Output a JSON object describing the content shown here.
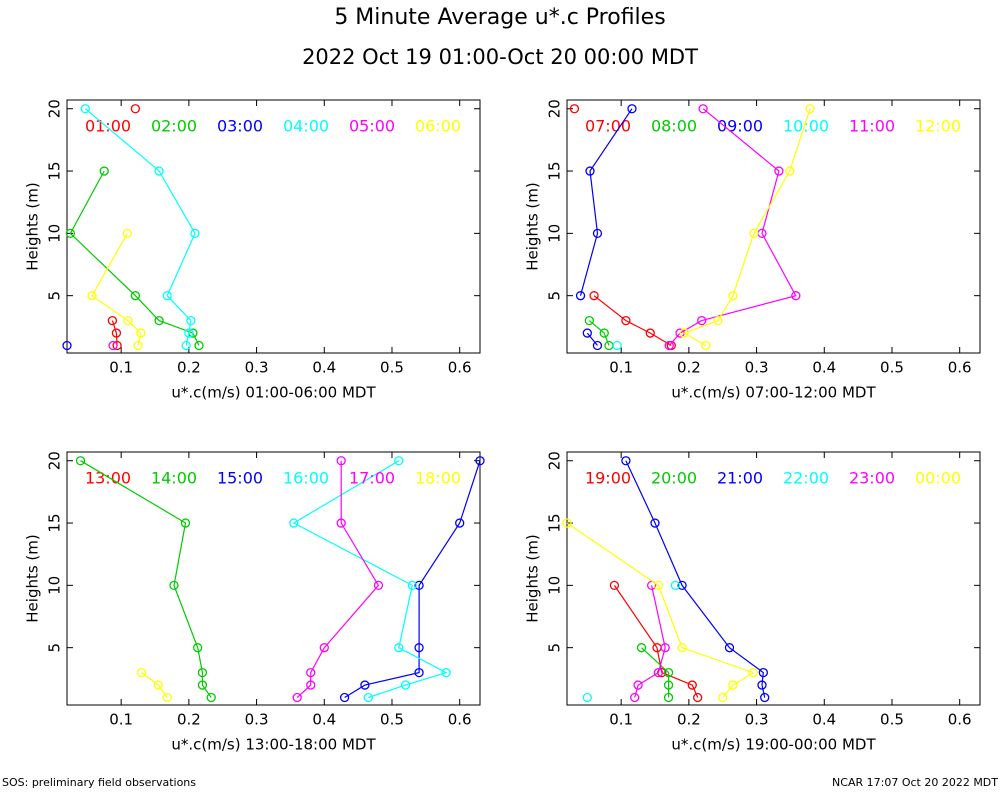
{
  "title": "5 Minute Average u*.c Profiles",
  "subtitle": "2022 Oct 19 01:00-Oct 20 00:00 MDT",
  "footer_left": "SOS: preliminary field observations",
  "footer_right": "NCAR 17:07 Oct 20 2022 MDT",
  "chart_data": [
    {
      "type": "line",
      "xlabel": "u*.c(m/s) 01:00-06:00 MDT",
      "ylabel": "Heights (m)",
      "heights": [
        1,
        2,
        3,
        5,
        10,
        15,
        20
      ],
      "xlim": [
        0.02,
        0.63
      ],
      "ylim": [
        0.4,
        20.7
      ],
      "xticks": [
        0.1,
        0.2,
        0.3,
        0.4,
        0.5,
        0.6
      ],
      "yticks": [
        5,
        10,
        15,
        20
      ],
      "series": [
        {
          "name": "01:00",
          "color": "#ff0000",
          "values": [
            0.094,
            0.093,
            0.087,
            null,
            null,
            null,
            0.121
          ]
        },
        {
          "name": "02:00",
          "color": "#00cc00",
          "values": [
            0.215,
            0.206,
            0.156,
            0.121,
            0.025,
            0.075,
            null
          ]
        },
        {
          "name": "03:00",
          "color": "#0000ff",
          "values": [
            0.02,
            null,
            null,
            null,
            null,
            null,
            null
          ]
        },
        {
          "name": "04:00",
          "color": "#00ffff",
          "values": [
            0.196,
            0.2,
            0.203,
            0.168,
            0.209,
            0.156,
            0.047
          ]
        },
        {
          "name": "05:00",
          "color": "#ff00ff",
          "values": [
            0.088,
            null,
            null,
            null,
            null,
            null,
            null
          ]
        },
        {
          "name": "06:00",
          "color": "#ffff00",
          "values": [
            0.125,
            0.129,
            0.11,
            0.057,
            0.109,
            null,
            null
          ]
        }
      ]
    },
    {
      "type": "line",
      "xlabel": "u*.c(m/s) 07:00-12:00 MDT",
      "ylabel": "Heights (m)",
      "heights": [
        1,
        2,
        3,
        5,
        10,
        15,
        20
      ],
      "xlim": [
        0.02,
        0.63
      ],
      "ylim": [
        0.4,
        20.7
      ],
      "xticks": [
        0.1,
        0.2,
        0.3,
        0.4,
        0.5,
        0.6
      ],
      "yticks": [
        5,
        10,
        15,
        20
      ],
      "series": [
        {
          "name": "07:00",
          "color": "#ff0000",
          "values": [
            0.174,
            0.143,
            0.107,
            0.06,
            null,
            null,
            0.031
          ]
        },
        {
          "name": "08:00",
          "color": "#00cc00",
          "values": [
            0.082,
            0.075,
            0.053,
            null,
            null,
            null,
            null
          ]
        },
        {
          "name": "09:00",
          "color": "#0000ff",
          "values": [
            0.065,
            0.05,
            null,
            0.04,
            0.065,
            0.054,
            0.116
          ]
        },
        {
          "name": "10:00",
          "color": "#00ffff",
          "values": [
            0.094,
            null,
            null,
            null,
            null,
            null,
            null
          ]
        },
        {
          "name": "11:00",
          "color": "#ff00ff",
          "values": [
            0.171,
            0.187,
            0.219,
            0.358,
            0.308,
            0.333,
            0.221
          ]
        },
        {
          "name": "12:00",
          "color": "#ffff00",
          "values": [
            0.225,
            0.193,
            0.243,
            0.265,
            0.296,
            0.349,
            0.379
          ]
        }
      ]
    },
    {
      "type": "line",
      "xlabel": "u*.c(m/s) 13:00-18:00 MDT",
      "ylabel": "Heights (m)",
      "heights": [
        1,
        2,
        3,
        5,
        10,
        15,
        20
      ],
      "xlim": [
        0.02,
        0.63
      ],
      "ylim": [
        0.4,
        20.7
      ],
      "xticks": [
        0.1,
        0.2,
        0.3,
        0.4,
        0.5,
        0.6
      ],
      "yticks": [
        5,
        10,
        15,
        20
      ],
      "series": [
        {
          "name": "13:00",
          "color": "#ff0000",
          "values": [
            null,
            null,
            null,
            null,
            null,
            null,
            null
          ]
        },
        {
          "name": "14:00",
          "color": "#00cc00",
          "values": [
            0.233,
            0.22,
            0.22,
            0.213,
            0.178,
            0.195,
            0.04
          ]
        },
        {
          "name": "15:00",
          "color": "#0000ff",
          "values": [
            0.43,
            0.46,
            0.54,
            0.54,
            0.54,
            0.6,
            0.63
          ]
        },
        {
          "name": "16:00",
          "color": "#00ffff",
          "values": [
            0.465,
            0.52,
            0.58,
            0.51,
            0.53,
            0.355,
            0.51
          ]
        },
        {
          "name": "17:00",
          "color": "#ff00ff",
          "values": [
            0.36,
            0.38,
            0.38,
            0.4,
            0.48,
            0.425,
            0.425
          ]
        },
        {
          "name": "18:00",
          "color": "#ffff00",
          "values": [
            0.168,
            0.155,
            0.13,
            null,
            null,
            null,
            null
          ]
        }
      ]
    },
    {
      "type": "line",
      "xlabel": "u*.c(m/s) 19:00-00:00 MDT",
      "ylabel": "Heights (m)",
      "heights": [
        1,
        2,
        3,
        5,
        10,
        15,
        20
      ],
      "xlim": [
        0.02,
        0.63
      ],
      "ylim": [
        0.4,
        20.7
      ],
      "xticks": [
        0.1,
        0.2,
        0.3,
        0.4,
        0.5,
        0.6
      ],
      "yticks": [
        5,
        10,
        15,
        20
      ],
      "series": [
        {
          "name": "19:00",
          "color": "#ff0000",
          "values": [
            0.213,
            0.205,
            0.16,
            0.153,
            0.09,
            null,
            null
          ]
        },
        {
          "name": "20:00",
          "color": "#00cc00",
          "values": [
            0.17,
            0.17,
            0.17,
            0.13,
            null,
            null,
            null
          ]
        },
        {
          "name": "21:00",
          "color": "#0000ff",
          "values": [
            0.312,
            0.308,
            0.31,
            0.26,
            0.19,
            0.15,
            0.107
          ]
        },
        {
          "name": "22:00",
          "color": "#00ffff",
          "values": [
            0.05,
            null,
            null,
            null,
            0.18,
            null,
            null
          ]
        },
        {
          "name": "23:00",
          "color": "#ff00ff",
          "values": [
            0.12,
            0.125,
            0.155,
            0.165,
            0.145,
            null,
            null
          ]
        },
        {
          "name": "00:00",
          "color": "#ffff00",
          "values": [
            0.25,
            0.265,
            0.295,
            0.19,
            0.155,
            0.02,
            null
          ]
        }
      ]
    }
  ]
}
